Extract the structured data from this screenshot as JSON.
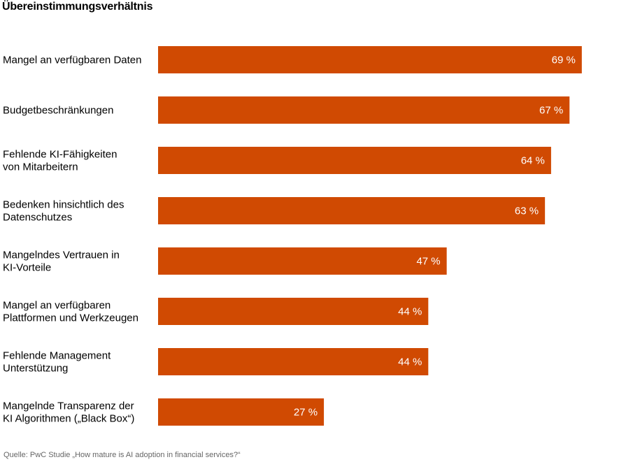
{
  "chart_data": {
    "type": "bar",
    "orientation": "horizontal",
    "title": "Übereinstimmungsverhältnis",
    "categories": [
      [
        "Mangel an verfügbaren Daten"
      ],
      [
        "Budgetbeschränkungen"
      ],
      [
        "Fehlende KI-Fähigkeiten",
        "von Mitarbeitern"
      ],
      [
        "Bedenken hinsichtlich des",
        "Datenschutzes"
      ],
      [
        "Mangelndes Vertrauen in",
        "KI-Vorteile"
      ],
      [
        "Mangel an verfügbaren",
        "Plattformen und Werkzeugen"
      ],
      [
        "Fehlende Management",
        "Unterstützung"
      ],
      [
        "Mangelnde Transparenz der",
        "KI Algorithmen („Black Box“)"
      ]
    ],
    "values": [
      69,
      67,
      64,
      63,
      47,
      44,
      44,
      27
    ],
    "value_labels": [
      "69 %",
      "67 %",
      "64 %",
      "63 %",
      "47 %",
      "44 %",
      "44 %",
      "27 %"
    ],
    "unit": "%",
    "xlim": [
      0,
      100
    ],
    "bar_color": "#d04a02",
    "grid": false,
    "legend": "none",
    "source": "Quelle: PwC Studie „How mature is AI adoption in financial services?“"
  }
}
